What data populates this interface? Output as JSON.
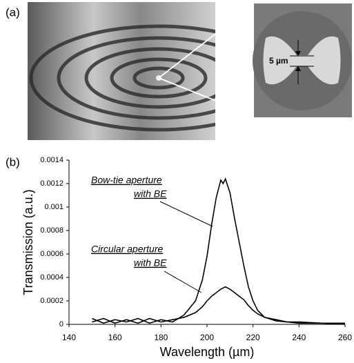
{
  "panel_a": {
    "label": "(a)",
    "scale_label": "5 µm"
  },
  "chart_data": {
    "type": "line",
    "panel_label": "(b)",
    "x_label": "Wavelength (µm)",
    "y_label": "Transmission (a.u.)",
    "x": [
      150,
      155,
      160,
      165,
      170,
      175,
      180,
      185,
      190,
      195,
      198,
      200,
      202,
      204,
      206,
      207,
      208,
      210,
      212,
      214,
      216,
      218,
      220,
      222,
      225,
      230,
      235,
      240,
      250,
      260
    ],
    "series": [
      {
        "name": "Bow-tie aperture with BE",
        "color": "#000000",
        "values": [
          5e-05,
          1e-05,
          4e-05,
          2e-05,
          5e-05,
          1e-05,
          4e-05,
          2e-05,
          8e-05,
          0.0002,
          0.00038,
          0.00058,
          0.00085,
          0.00108,
          0.00123,
          0.0012,
          0.00124,
          0.00112,
          0.0009,
          0.0007,
          0.0005,
          0.00032,
          0.0002,
          0.00012,
          6e-05,
          4e-05,
          2e-05,
          2e-05,
          1e-05,
          1e-05
        ]
      },
      {
        "name": "Circular aperture with BE",
        "color": "#000000",
        "values": [
          2e-05,
          5e-05,
          1e-05,
          4e-05,
          1e-05,
          5e-05,
          2e-05,
          4e-05,
          6e-05,
          0.0001,
          0.00015,
          0.0002,
          0.00024,
          0.00027,
          0.0003,
          0.00031,
          0.00032,
          0.0003,
          0.00027,
          0.00024,
          0.00021,
          0.00016,
          0.00012,
          9e-05,
          6e-05,
          3e-05,
          2e-05,
          1e-05,
          1e-05,
          0
        ]
      }
    ],
    "annotations": [
      "Bow-tie aperture",
      "with BE",
      "Circular aperture",
      "with BE"
    ],
    "xlim": [
      140,
      260
    ],
    "xticks": [
      140,
      160,
      180,
      200,
      220,
      240,
      260
    ],
    "ylim": [
      0,
      0.0014
    ],
    "yticks": [
      0,
      0.0002,
      0.0004,
      0.0006,
      0.0008,
      0.001,
      0.0012,
      0.0014
    ],
    "grid": false
  }
}
